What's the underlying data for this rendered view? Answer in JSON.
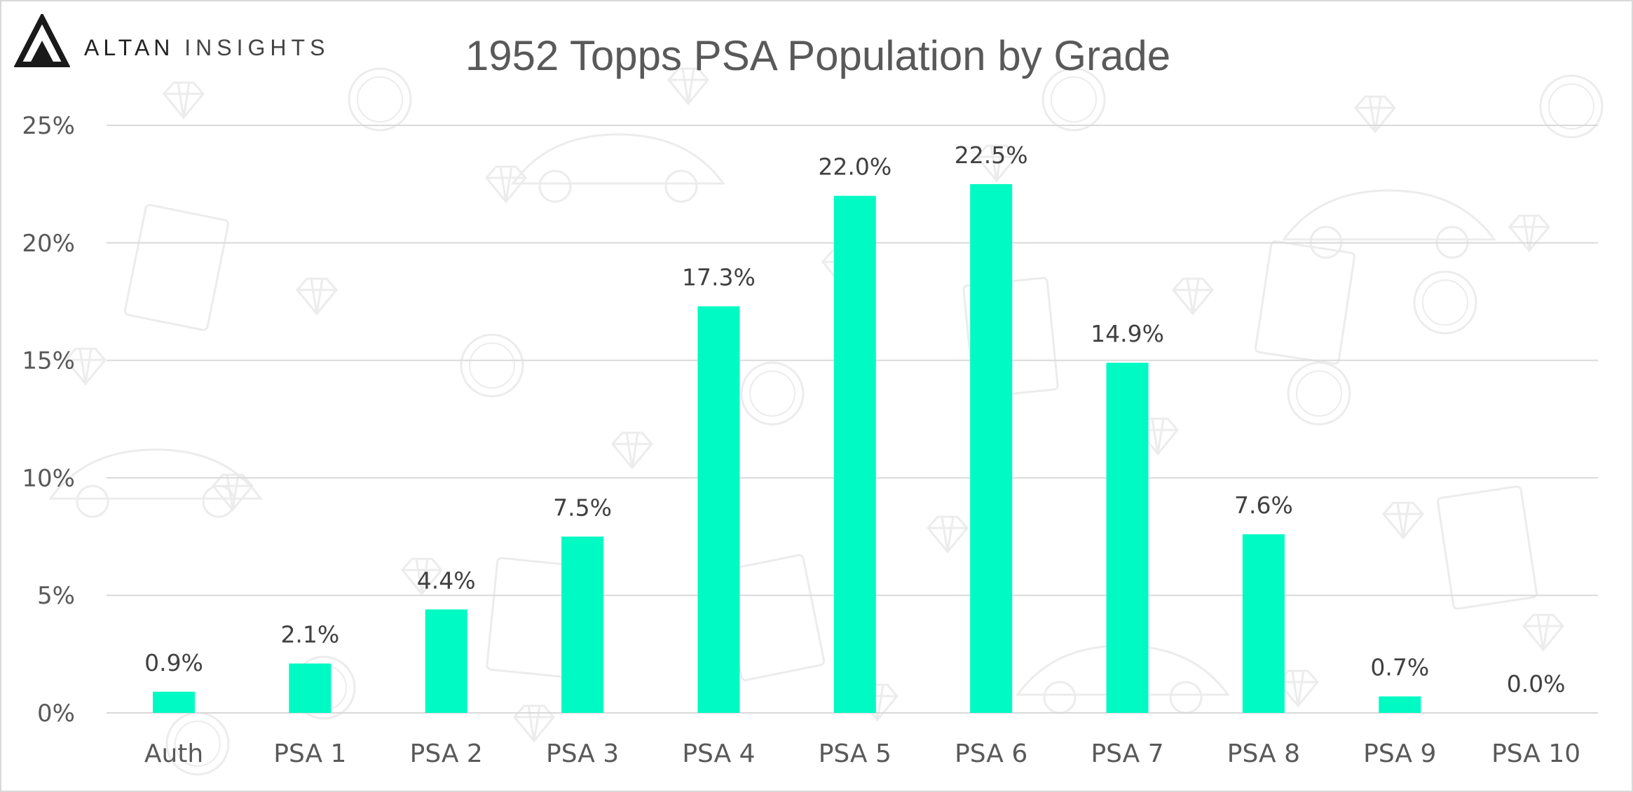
{
  "brand": {
    "logo_word_1": "ALTAN",
    "logo_word_2": "INSIGHTS"
  },
  "colors": {
    "bar": "#00FAC3",
    "grid": "#d9d9d9",
    "text": "#595959",
    "background_doodles": "#ececec"
  },
  "chart_data": {
    "type": "bar",
    "title": "1952 Topps PSA Population by Grade",
    "xlabel": "",
    "ylabel": "",
    "categories": [
      "Auth",
      "PSA 1",
      "PSA 2",
      "PSA 3",
      "PSA 4",
      "PSA 5",
      "PSA 6",
      "PSA 7",
      "PSA 8",
      "PSA 9",
      "PSA 10"
    ],
    "values": [
      0.9,
      2.1,
      4.4,
      7.5,
      17.3,
      22.0,
      22.5,
      14.9,
      7.6,
      0.7,
      0.0
    ],
    "data_labels": [
      "0.9%",
      "2.1%",
      "4.4%",
      "7.5%",
      "17.3%",
      "22.0%",
      "22.5%",
      "14.9%",
      "7.6%",
      "0.7%",
      "0.0%"
    ],
    "y_ticks": [
      0,
      5,
      10,
      15,
      20,
      25
    ],
    "y_tick_labels": [
      "0%",
      "5%",
      "10%",
      "15%",
      "20%",
      "25%"
    ],
    "ylim": [
      0,
      25
    ],
    "grid": true,
    "legend": "none"
  }
}
